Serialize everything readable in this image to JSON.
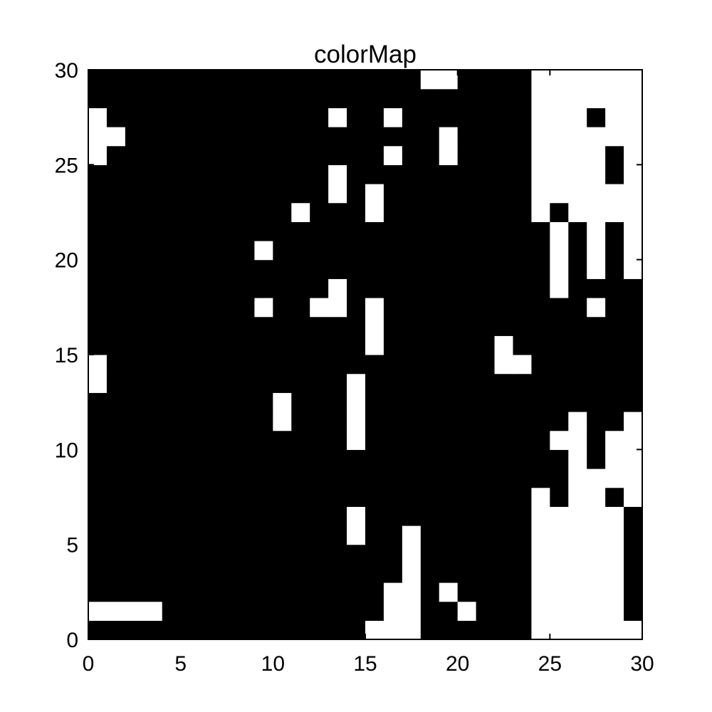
{
  "chart_data": {
    "type": "heatmap",
    "title": "colorMap",
    "xlabel": "",
    "ylabel": "",
    "xlim": [
      0,
      30
    ],
    "ylim": [
      0,
      30
    ],
    "xticks": [
      "0",
      "5",
      "10",
      "15",
      "20",
      "25",
      "30"
    ],
    "yticks": [
      "0",
      "5",
      "10",
      "15",
      "20",
      "25",
      "30"
    ],
    "grid": false,
    "cell_colors": {
      "0": "#000000",
      "1": "#ffffff"
    },
    "grid_rows_bottom_to_top": [
      "000000000000000111000000111111",
      "111100000000000011001000111110",
      "000000000000000011010000111110",
      "000000000000000001000000111110",
      "000000000000000001000000111110",
      "000000000000001001000000111110",
      "000000000000001000000000111110",
      "000000000000000000000000101101",
      "000000000000000000000000001111",
      "000000000000000000000000001011",
      "000000000000001000000000011011",
      "000000000010001000000000001001",
      "000000000010001000000000000000",
      "100000000000001000000000000000",
      "100000000000000000000011000000",
      "000000000000000100000010000000",
      "000000000000000100000000000000",
      "000000000100110100000000000100",
      "000000000000010000000000010000",
      "000000000000000000000000010101",
      "000000000100000000000000010101",
      "000000000000000000000000010101",
      "000000000001000100000000101111",
      "000000000000010100000000111111",
      "000000000000010000000000111101",
      "100000000000000010010000111101",
      "110000000000000000010000111111",
      "100000000000010010000000111011",
      "000000000000000000000000111111",
      "000000000000000000110000111111"
    ]
  }
}
